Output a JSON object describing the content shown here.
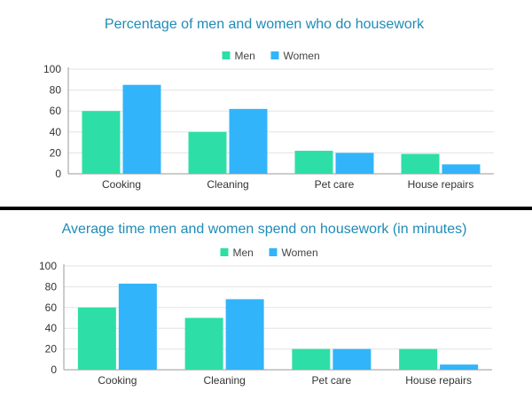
{
  "colors": {
    "men": "#2ddfa6",
    "women": "#32b4fa"
  },
  "chart_data": [
    {
      "type": "bar",
      "title": "Percentage of men and women who do housework",
      "categories": [
        "Cooking",
        "Cleaning",
        "Pet care",
        "House repairs"
      ],
      "series": [
        {
          "name": "Men",
          "values": [
            60,
            40,
            22,
            19
          ]
        },
        {
          "name": "Women",
          "values": [
            85,
            62,
            20,
            9
          ]
        }
      ],
      "xlabel": "",
      "ylabel": "",
      "ylim": [
        0,
        100
      ],
      "yticks": [
        0,
        20,
        40,
        60,
        80,
        100
      ],
      "grid": true,
      "legend": "top-center"
    },
    {
      "type": "bar",
      "title": "Average time men and women spend on housework (in minutes)",
      "categories": [
        "Cooking",
        "Cleaning",
        "Pet care",
        "House repairs"
      ],
      "series": [
        {
          "name": "Men",
          "values": [
            60,
            50,
            20,
            20
          ]
        },
        {
          "name": "Women",
          "values": [
            83,
            68,
            20,
            5
          ]
        }
      ],
      "xlabel": "",
      "ylabel": "",
      "ylim": [
        0,
        100
      ],
      "yticks": [
        0,
        20,
        40,
        60,
        80,
        100
      ],
      "grid": true,
      "legend": "top-center"
    }
  ]
}
